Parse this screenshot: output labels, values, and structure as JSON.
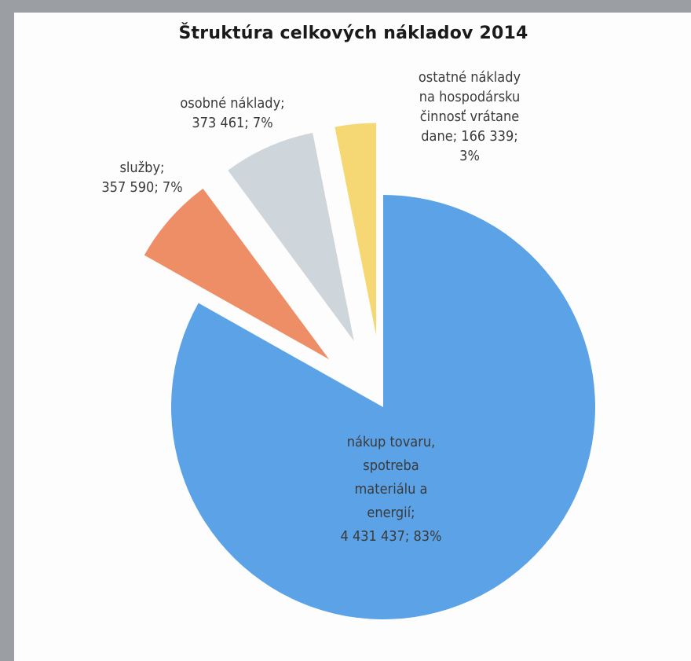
{
  "chart_data": {
    "type": "pie",
    "title": "Štruktúra celkových nákladov 2014",
    "slices": [
      {
        "label_lines": [
          "nákup tovaru,",
          "spotreba",
          "materiálu a",
          "energií;",
          "4 431 437; 83%"
        ],
        "category": "nákup tovaru, spotreba materiálu a energií",
        "value": 4431437,
        "percent": 83,
        "color": "#5ba3e6"
      },
      {
        "label_lines": [
          "služby;",
          "357 590; 7%"
        ],
        "category": "služby",
        "value": 357590,
        "percent": 7,
        "color": "#ee8e67"
      },
      {
        "label_lines": [
          "osobné náklady;",
          "373 461; 7%"
        ],
        "category": "osobné náklady",
        "value": 373461,
        "percent": 7,
        "color": "#cfd6db"
      },
      {
        "label_lines": [
          "ostatné náklady",
          "na hospodársku",
          "činnosť vrátane",
          "dane; 166 339;",
          "3%"
        ],
        "category": "ostatné náklady na hospodársku činnosť vrátane dane",
        "value": 166339,
        "percent": 3,
        "color": "#f5d874"
      }
    ],
    "legend": "none",
    "exploded": true
  }
}
